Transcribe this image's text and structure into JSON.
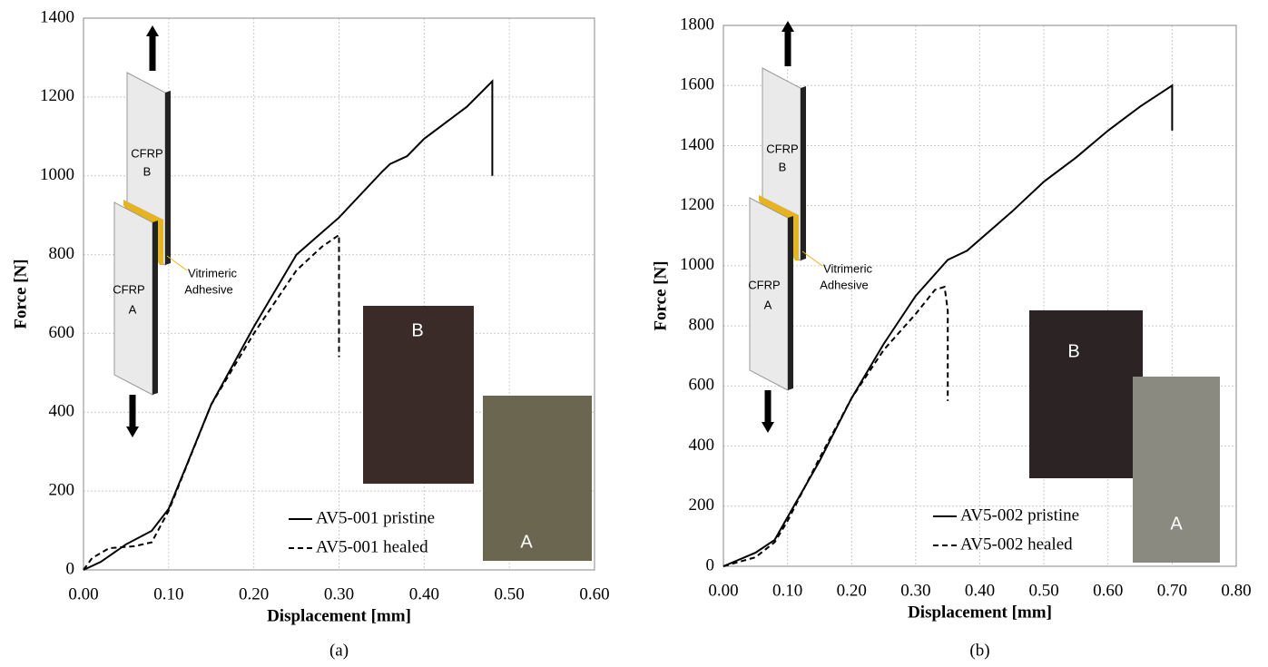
{
  "chart_data": [
    {
      "type": "line",
      "panel_label": "(a)",
      "x_label": "Displacement [mm]",
      "y_label": "Force [N]",
      "grid": true,
      "xlim": [
        0,
        0.6
      ],
      "ylim": [
        0,
        1400
      ],
      "xticks": [
        {
          "value": 0,
          "label": "0.00"
        },
        {
          "value": 0.1,
          "label": "0.10"
        },
        {
          "value": 0.2,
          "label": "0.20"
        },
        {
          "value": 0.3,
          "label": "0.30"
        },
        {
          "value": 0.4,
          "label": "0.40"
        },
        {
          "value": 0.5,
          "label": "0.50"
        },
        {
          "value": 0.6,
          "label": "0.60"
        }
      ],
      "yticks": [
        0,
        200,
        400,
        600,
        800,
        1000,
        1200,
        1400
      ],
      "annotations": [
        "CFRP",
        "B",
        "CFRP",
        "A",
        "Vitrimeric",
        "Adhesive",
        "B",
        "A"
      ],
      "series": [
        {
          "name": "AV5-001 pristine",
          "color": "#000000",
          "dash": "solid",
          "x": [
            0,
            0.02,
            0.05,
            0.08,
            0.1,
            0.12,
            0.15,
            0.2,
            0.25,
            0.3,
            0.35,
            0.36,
            0.38,
            0.4,
            0.45,
            0.48,
            0.48
          ],
          "values": [
            0,
            20,
            65,
            99,
            155,
            260,
            420,
            617,
            800,
            894,
            1009,
            1030,
            1050,
            1094,
            1175,
            1240,
            1000
          ]
        },
        {
          "name": "AV5-001 healed",
          "color": "#000000",
          "dash": "dashed",
          "x": [
            0,
            0.01,
            0.03,
            0.06,
            0.08,
            0.1,
            0.15,
            0.2,
            0.25,
            0.28,
            0.3,
            0.3
          ],
          "values": [
            0,
            30,
            55,
            60,
            70,
            150,
            420,
            600,
            760,
            820,
            850,
            540
          ]
        }
      ]
    },
    {
      "type": "line",
      "panel_label": "(b)",
      "x_label": "Displacement [mm]",
      "y_label": "Force [N]",
      "grid": true,
      "xlim": [
        0,
        0.8
      ],
      "ylim": [
        0,
        1800
      ],
      "xticks": [
        {
          "value": 0,
          "label": "0.00"
        },
        {
          "value": 0.1,
          "label": "0.10"
        },
        {
          "value": 0.2,
          "label": "0.20"
        },
        {
          "value": 0.3,
          "label": "0.30"
        },
        {
          "value": 0.4,
          "label": "0.40"
        },
        {
          "value": 0.5,
          "label": "0.50"
        },
        {
          "value": 0.6,
          "label": "0.60"
        },
        {
          "value": 0.7,
          "label": "0.70"
        },
        {
          "value": 0.8,
          "label": "0.80"
        }
      ],
      "yticks": [
        0,
        200,
        400,
        600,
        800,
        1000,
        1200,
        1400,
        1600,
        1800
      ],
      "annotations": [
        "CFRP",
        "B",
        "CFRP",
        "A",
        "Vitrimeric",
        "Adhesive",
        "B",
        "A"
      ],
      "series": [
        {
          "name": "AV5-002 pristine",
          "color": "#000000",
          "dash": "solid",
          "x": [
            0,
            0.05,
            0.08,
            0.1,
            0.15,
            0.2,
            0.25,
            0.3,
            0.35,
            0.38,
            0.45,
            0.5,
            0.55,
            0.6,
            0.65,
            0.7,
            0.7
          ],
          "values": [
            0,
            45,
            88,
            163,
            350,
            560,
            740,
            900,
            1020,
            1050,
            1180,
            1280,
            1360,
            1450,
            1530,
            1600,
            1450
          ]
        },
        {
          "name": "AV5-002  healed",
          "color": "#000000",
          "dash": "dashed",
          "x": [
            0,
            0.05,
            0.08,
            0.1,
            0.15,
            0.2,
            0.25,
            0.3,
            0.33,
            0.345,
            0.35,
            0.35
          ],
          "values": [
            0,
            30,
            80,
            150,
            360,
            560,
            720,
            840,
            920,
            930,
            850,
            550
          ]
        }
      ]
    }
  ]
}
